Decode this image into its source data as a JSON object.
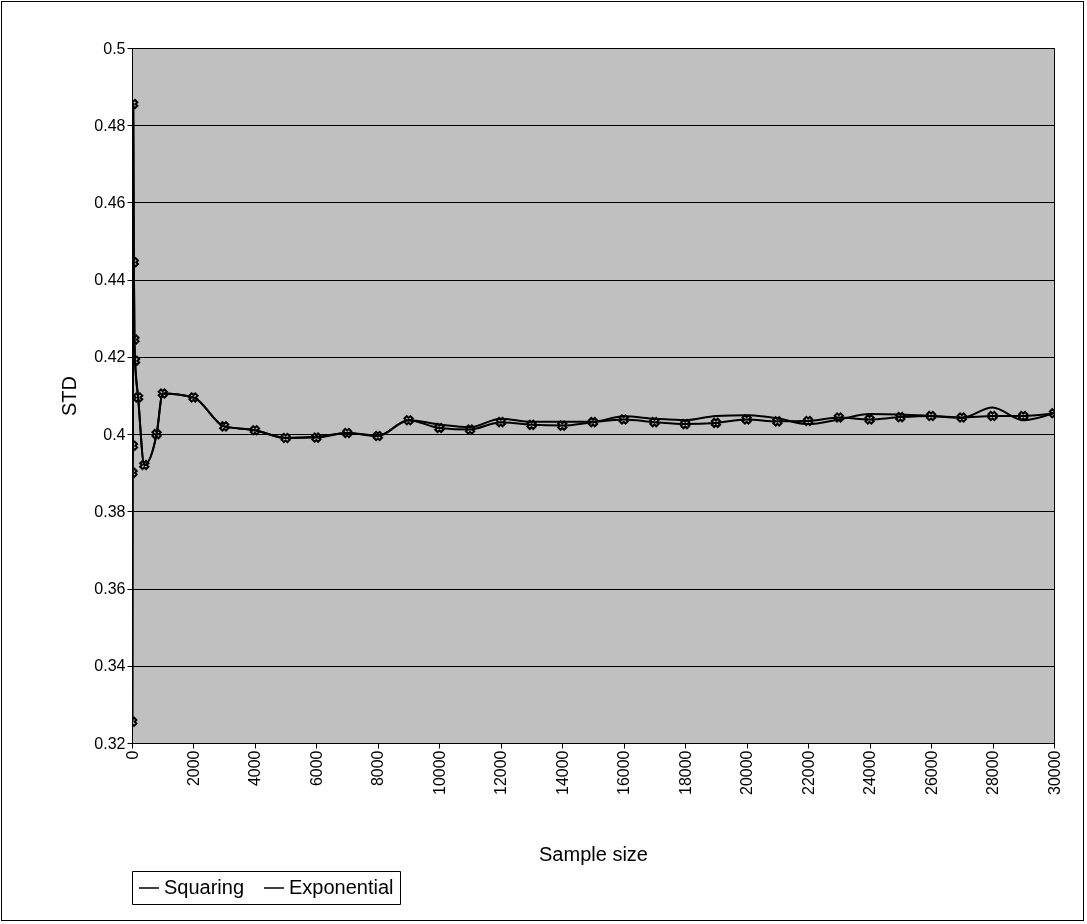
{
  "chart_data": {
    "type": "line",
    "xlabel": "Sample size",
    "ylabel": "STD",
    "x": [
      10,
      20,
      30,
      40,
      60,
      80,
      100,
      200,
      400,
      800,
      1000,
      2000,
      3000,
      4000,
      5000,
      6000,
      7000,
      8000,
      9000,
      10000,
      11000,
      12000,
      13000,
      14000,
      15000,
      16000,
      17000,
      18000,
      19000,
      20000,
      21000,
      22000,
      23000,
      24000,
      25000,
      26000,
      27000,
      28000,
      29000,
      30000
    ],
    "series": [
      {
        "name": "Squaring",
        "color": "#000000",
        "marker": "cross",
        "values": [
          0.3255,
          0.39,
          0.397,
          0.4855,
          0.4445,
          0.4245,
          0.419,
          0.4095,
          0.392,
          0.4,
          0.4105,
          0.4095,
          0.402,
          0.401,
          0.399,
          0.3991,
          0.4003,
          0.3995,
          0.4036,
          0.4016,
          0.4012,
          0.4031,
          0.4024,
          0.4022,
          0.4031,
          0.4038,
          0.4031,
          0.4026,
          0.4029,
          0.4038,
          0.4033,
          0.4034,
          0.4043,
          0.4038,
          0.4044,
          0.4047,
          0.4043,
          0.4047,
          0.4047,
          0.4054
        ]
      },
      {
        "name": "Exponential",
        "color": "#000000",
        "marker": "none",
        "values": [
          0.3255,
          0.39,
          0.397,
          0.4855,
          0.4445,
          0.4245,
          0.419,
          0.4095,
          0.392,
          0.4,
          0.4105,
          0.4095,
          0.402,
          0.401,
          0.399,
          0.3993,
          0.4003,
          0.3996,
          0.4036,
          0.4025,
          0.4018,
          0.404,
          0.4032,
          0.4032,
          0.4032,
          0.4046,
          0.404,
          0.4036,
          0.4047,
          0.4049,
          0.4041,
          0.4026,
          0.4038,
          0.4052,
          0.4051,
          0.4047,
          0.4042,
          0.4069,
          0.4036,
          0.4055
        ]
      }
    ],
    "xlim": [
      0,
      30000
    ],
    "xticks": [
      0,
      2000,
      4000,
      6000,
      8000,
      10000,
      12000,
      14000,
      16000,
      18000,
      20000,
      22000,
      24000,
      26000,
      28000,
      30000
    ],
    "ylim": [
      0.32,
      0.5
    ],
    "yticks": [
      0.32,
      0.34,
      0.36,
      0.38,
      0.4,
      0.42,
      0.44,
      0.46,
      0.48,
      0.5
    ],
    "grid": "y",
    "legend": "bottom",
    "line_style": "solid"
  }
}
